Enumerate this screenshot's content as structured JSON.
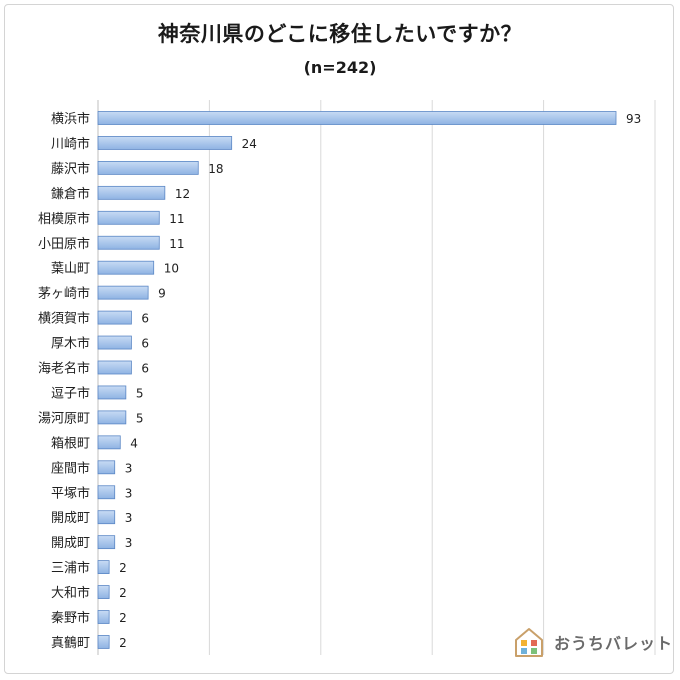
{
  "chart_data": {
    "type": "bar",
    "orientation": "horizontal",
    "title": "神奈川県のどこに移住したいですか？",
    "subtitle": "(n=242)",
    "categories": [
      "横浜市",
      "川崎市",
      "藤沢市",
      "鎌倉市",
      "相模原市",
      "小田原市",
      "葉山町",
      "茅ヶ崎市",
      "横須賀市",
      "厚木市",
      "海老名市",
      "逗子市",
      "湯河原町",
      "箱根町",
      "座間市",
      "平塚市",
      "開成町",
      "開成町",
      "三浦市",
      "大和市",
      "秦野市",
      "真鶴町"
    ],
    "values": [
      93,
      24,
      18,
      12,
      11,
      11,
      10,
      9,
      6,
      6,
      6,
      5,
      5,
      4,
      3,
      3,
      3,
      3,
      2,
      2,
      2,
      2
    ],
    "xlim": [
      0,
      100
    ],
    "grid": true,
    "colors": {
      "bar_top": "#c8dbf4",
      "bar_bottom": "#8fb3e3",
      "bar_border": "#5b87c5"
    }
  },
  "brand": {
    "logo_text": "おうちバレット"
  }
}
